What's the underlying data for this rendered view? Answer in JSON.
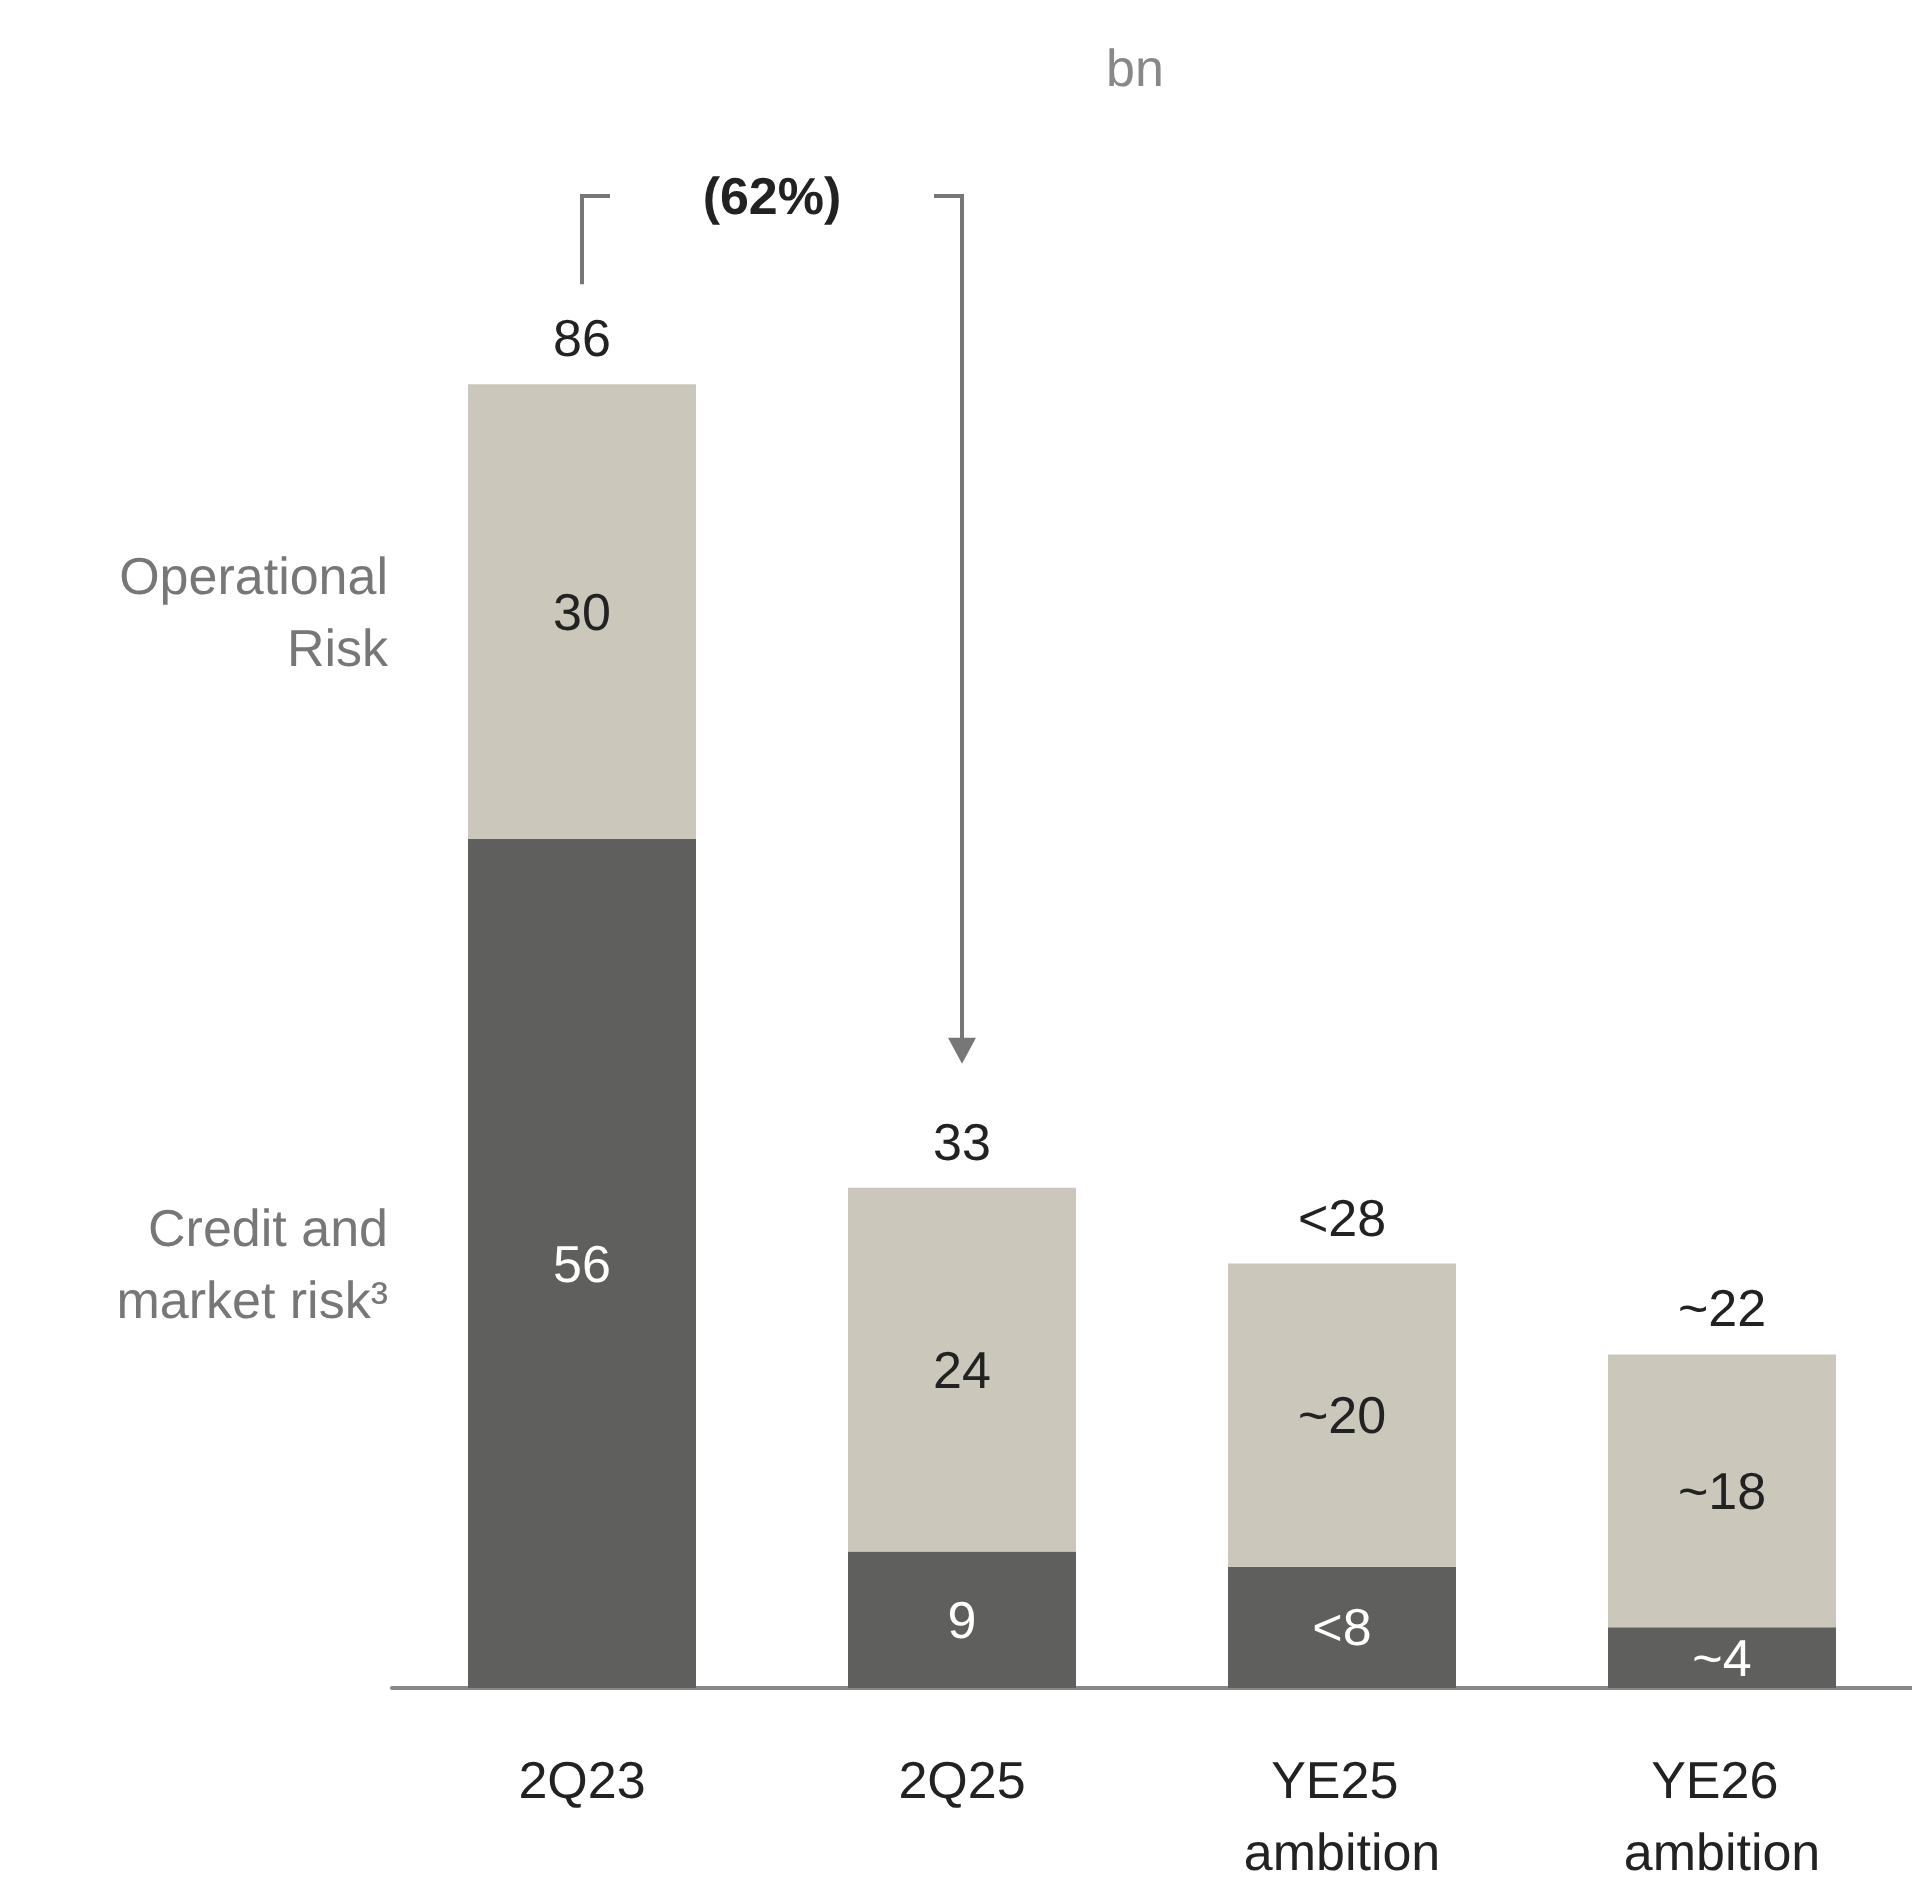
{
  "chart_data": {
    "type": "bar",
    "title": "bn",
    "stacked": true,
    "legend": false,
    "categories": [
      "2Q23",
      "2Q25",
      "YE25 ambition",
      "YE26 ambition"
    ],
    "series": [
      {
        "name": "Credit and market risk³",
        "color": "#5f605e",
        "values": [
          56,
          9,
          8,
          4
        ],
        "value_labels": [
          "56",
          "9",
          "<8",
          "~4"
        ]
      },
      {
        "name": "Operational Risk",
        "color": "#cbc8bb",
        "values": [
          30,
          24,
          20,
          18
        ],
        "value_labels": [
          "30",
          "24",
          "~20",
          "~18"
        ]
      }
    ],
    "totals": [
      "86",
      "33",
      "<28",
      "~22"
    ],
    "annotations": [
      "(62%)"
    ]
  }
}
